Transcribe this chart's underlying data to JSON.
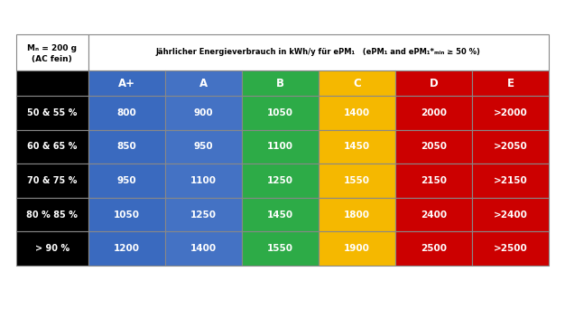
{
  "header_left_line1": "Mₙ = 200 g",
  "header_left_line2": "(AC fein)",
  "header_right": "Jährlicher Energieverbrauch in kWh/y für ePM₁   (ePM₁ and ePM₁*ₘᵢₙ ≥ 50 %)",
  "col_headers": [
    "A+",
    "A",
    "B",
    "C",
    "D",
    "E"
  ],
  "col_colors": [
    "#3a6abf",
    "#4472c4",
    "#2dab47",
    "#f5b800",
    "#cc0000",
    "#cc0000"
  ],
  "row_labels": [
    "50 & 55 %",
    "60 & 65 %",
    "70 & 75 %",
    "80 % 85 %",
    "> 90 %"
  ],
  "data": [
    [
      "800",
      "900",
      "1050",
      "1400",
      "2000",
      ">2000"
    ],
    [
      "850",
      "950",
      "1100",
      "1450",
      "2050",
      ">2050"
    ],
    [
      "950",
      "1100",
      "1250",
      "1550",
      "2150",
      ">2150"
    ],
    [
      "1050",
      "1250",
      "1450",
      "1800",
      "2400",
      ">2400"
    ],
    [
      "1200",
      "1400",
      "1550",
      "1900",
      "2500",
      ">2500"
    ]
  ],
  "cell_colors": [
    [
      "#3a6abf",
      "#4472c4",
      "#2dab47",
      "#f5b800",
      "#cc0000",
      "#cc0000"
    ],
    [
      "#3a6abf",
      "#4472c4",
      "#2dab47",
      "#f5b800",
      "#cc0000",
      "#cc0000"
    ],
    [
      "#3a6abf",
      "#4472c4",
      "#2dab47",
      "#f5b800",
      "#cc0000",
      "#cc0000"
    ],
    [
      "#3a6abf",
      "#4472c4",
      "#2dab47",
      "#f5b800",
      "#cc0000",
      "#cc0000"
    ],
    [
      "#3a6abf",
      "#4472c4",
      "#2dab47",
      "#f5b800",
      "#cc0000",
      "#cc0000"
    ]
  ],
  "border_color": "#888888",
  "background": "#ffffff",
  "text_white": "#ffffff",
  "text_dark": "#000000",
  "header_bg": "#ffffff",
  "black_bg": "#000000",
  "fig_w": 6.26,
  "fig_h": 3.52,
  "dpi": 100
}
